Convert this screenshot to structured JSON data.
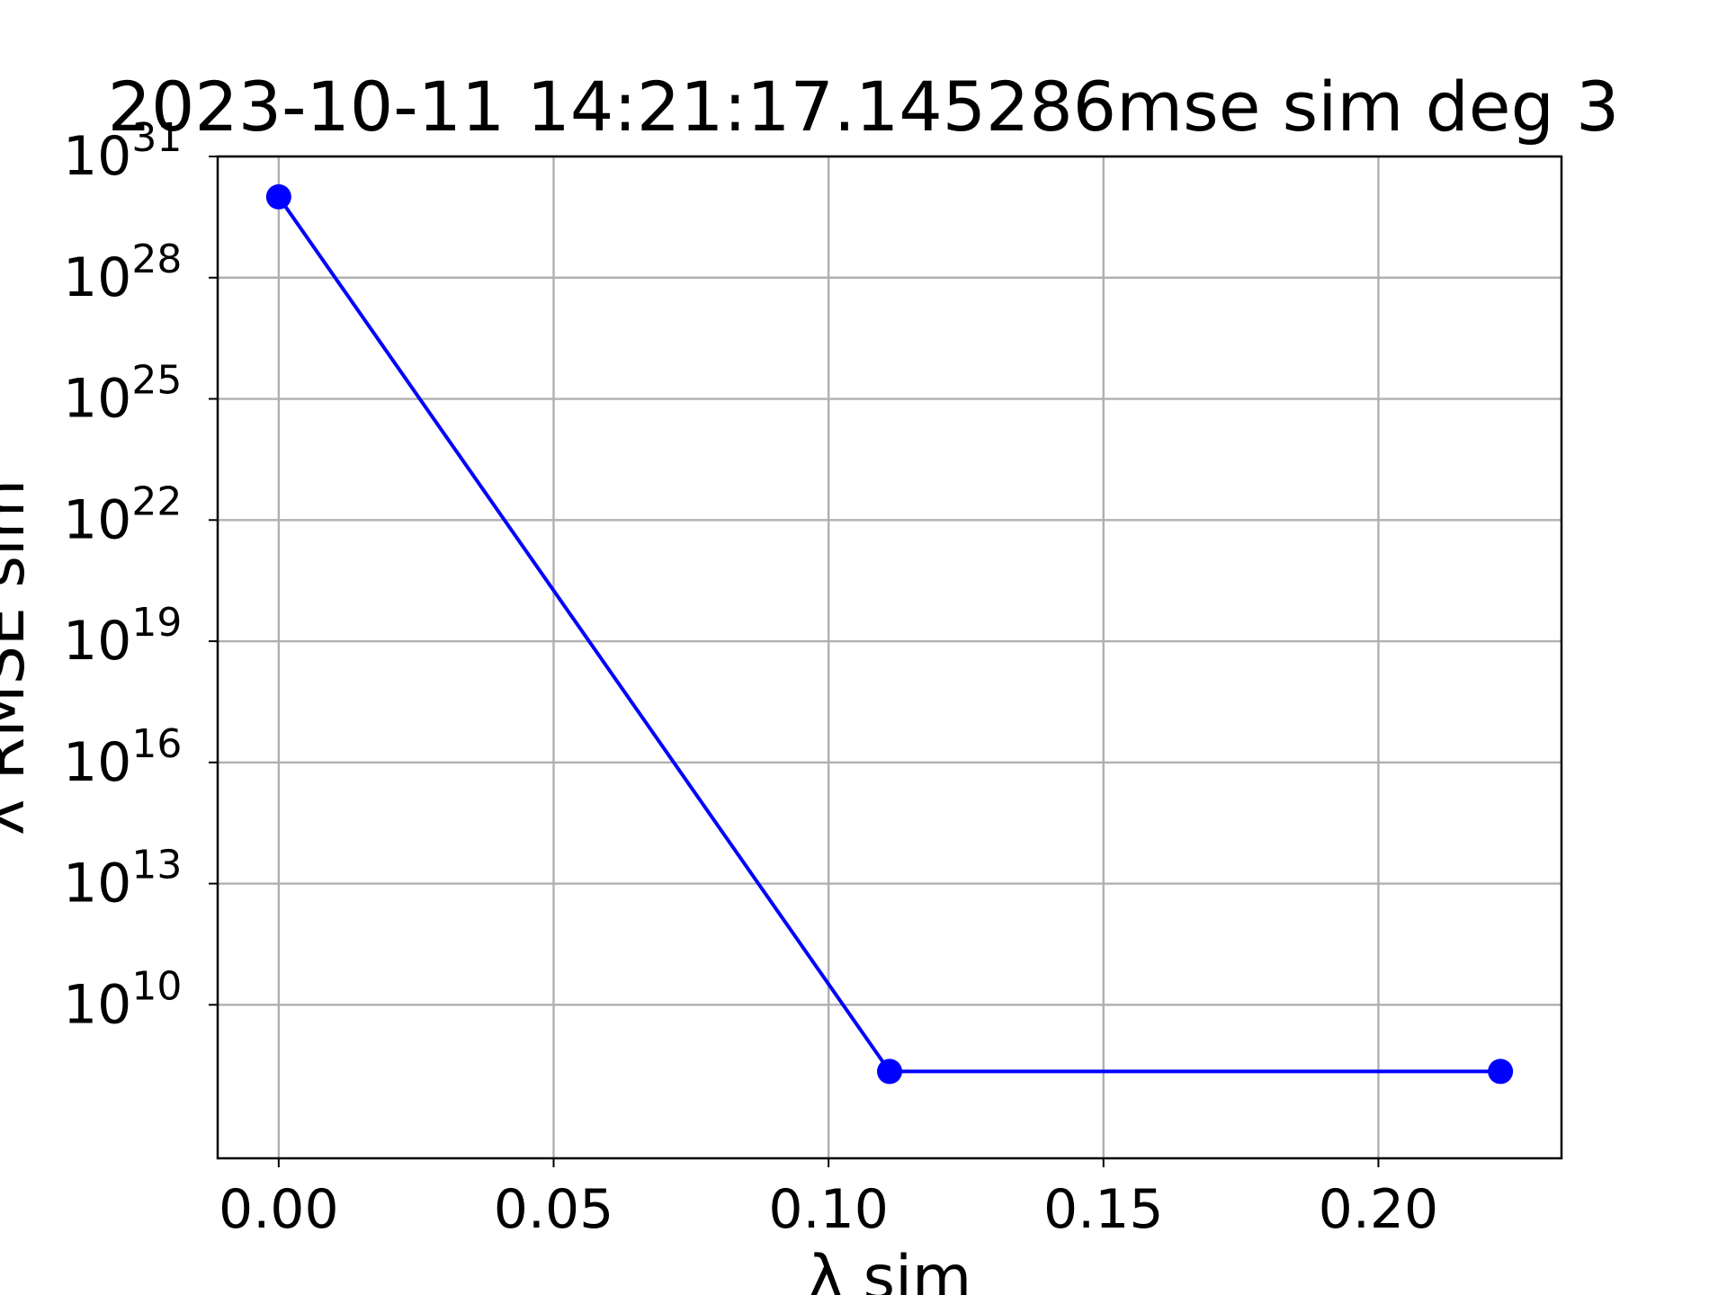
{
  "chart_data": {
    "type": "line",
    "title": "2023-10-11 14:21:17.145286mse sim deg 3",
    "xlabel": "λ sim",
    "ylabel": "λ RMSE sim",
    "x_scale": "linear",
    "y_scale": "log",
    "xlim": [
      -0.0111,
      0.2333
    ],
    "ylim_log10": [
      6.2,
      31.0
    ],
    "x_ticks": [
      0.0,
      0.05,
      0.1,
      0.15,
      0.2
    ],
    "x_tick_labels": [
      "0.00",
      "0.05",
      "0.10",
      "0.15",
      "0.20"
    ],
    "y_ticks_log10": [
      10,
      13,
      16,
      19,
      22,
      25,
      28,
      31
    ],
    "y_tick_base": "10",
    "y_tick_exponents": [
      "10",
      "13",
      "16",
      "19",
      "22",
      "25",
      "28",
      "31"
    ],
    "grid": true,
    "series": [
      {
        "color": "#0000ff",
        "marker": "circle",
        "x": [
          0.0,
          0.1111,
          0.2222
        ],
        "y_log10": [
          30.0,
          8.35,
          8.35
        ]
      }
    ]
  }
}
